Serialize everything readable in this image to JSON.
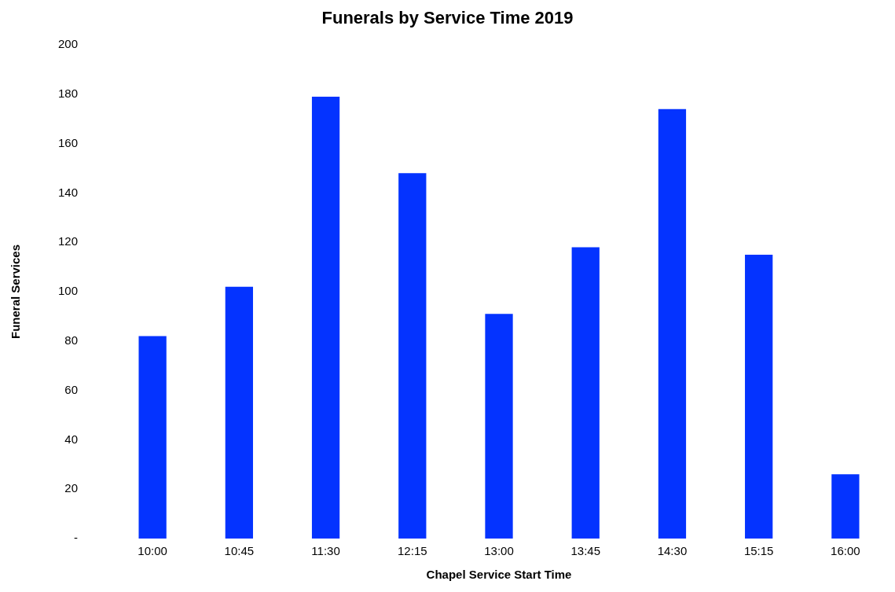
{
  "chart_data": {
    "type": "bar",
    "title": "Funerals by Service Time 2019",
    "xlabel": "Chapel Service Start Time",
    "ylabel": "Funeral Services",
    "categories": [
      "10:00",
      "10:45",
      "11:30",
      "12:15",
      "13:00",
      "13:45",
      "14:30",
      "15:15",
      "16:00"
    ],
    "values": [
      82,
      102,
      179,
      148,
      91,
      118,
      174,
      115,
      26
    ],
    "color": "#0433ff",
    "ylim": [
      0,
      200
    ],
    "yticks": [
      {
        "value": 0,
        "label": "-"
      },
      20,
      40,
      60,
      80,
      100,
      120,
      140,
      160,
      180,
      200
    ],
    "grid": false,
    "legend": false
  }
}
